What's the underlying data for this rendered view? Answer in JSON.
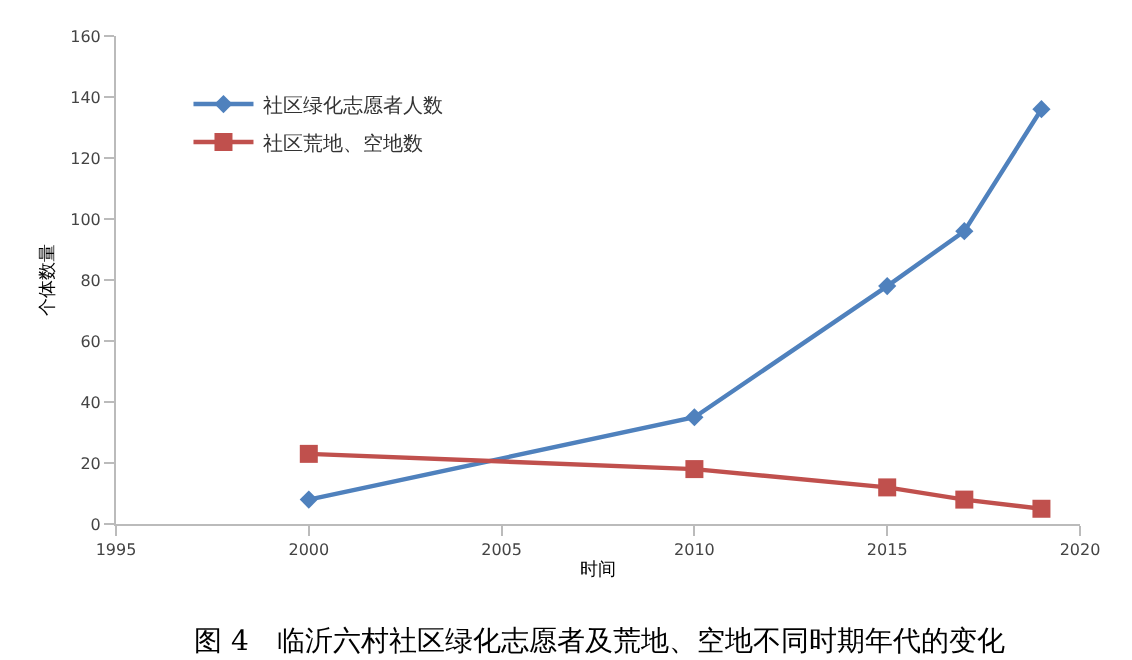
{
  "chart_data": {
    "type": "line",
    "xlabel": "时间",
    "ylabel": "个体数量",
    "x": [
      2000,
      2010,
      2015,
      2017,
      2019
    ],
    "series": [
      {
        "name": "社区绿化志愿者人数",
        "color": "#4f81bd",
        "marker": "diamond",
        "values": [
          8,
          35,
          78,
          96,
          136
        ]
      },
      {
        "name": "社区荒地、空地数",
        "color": "#c0504d",
        "marker": "square",
        "values": [
          23,
          18,
          12,
          8,
          5
        ]
      }
    ],
    "xlim": [
      1995,
      2020
    ],
    "xticks": [
      1995,
      2000,
      2005,
      2010,
      2015,
      2020
    ],
    "ylim": [
      0,
      160
    ],
    "yticks": [
      0,
      20,
      40,
      60,
      80,
      100,
      120,
      140,
      160
    ],
    "grid": false,
    "legend": "top left",
    "annotations": [
      "图 4　临沂六村社区绿化志愿者及荒地、空地不同时期年代的变化"
    ]
  }
}
